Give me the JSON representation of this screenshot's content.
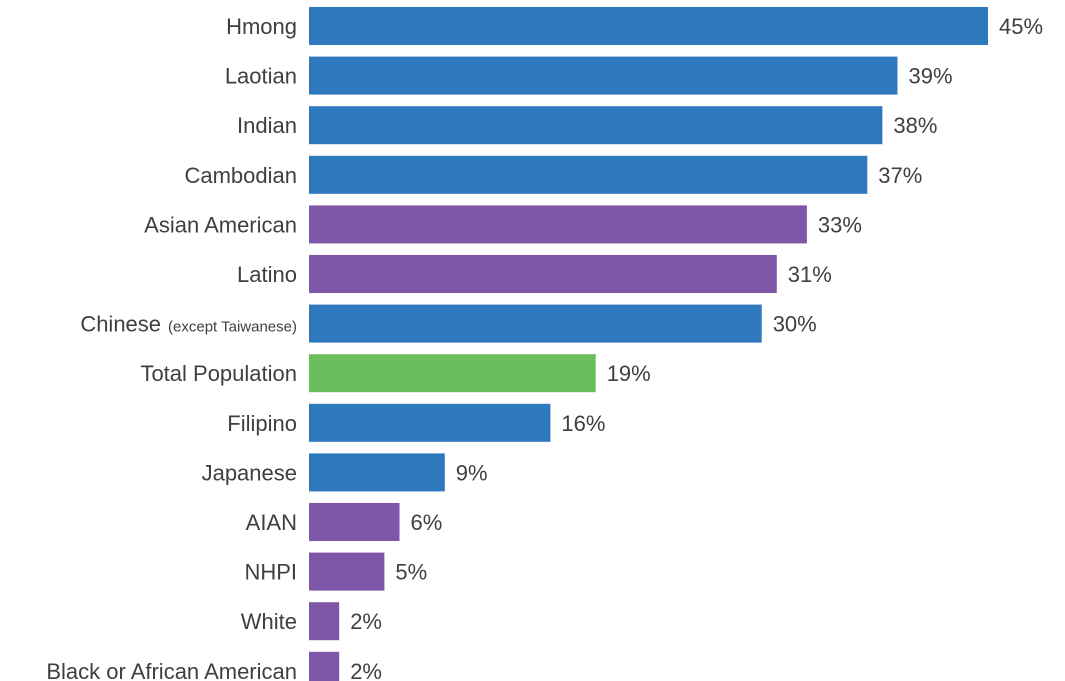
{
  "chart_data": {
    "type": "bar",
    "orientation": "horizontal",
    "title": "",
    "xlabel": "",
    "ylabel": "",
    "xlim": [
      0,
      45
    ],
    "grid": false,
    "legend": "none",
    "value_format": "percent",
    "colors": {
      "asian_subgroup": "#2e78be",
      "comparison_group": "#7f57a8",
      "total": "#6abf5c"
    },
    "categories": [
      {
        "label": "Hmong",
        "note": "",
        "value": 45,
        "value_label": "45%",
        "group": "asian_subgroup"
      },
      {
        "label": "Laotian",
        "note": "",
        "value": 39,
        "value_label": "39%",
        "group": "asian_subgroup"
      },
      {
        "label": "Indian",
        "note": "",
        "value": 38,
        "value_label": "38%",
        "group": "asian_subgroup"
      },
      {
        "label": "Cambodian",
        "note": "",
        "value": 37,
        "value_label": "37%",
        "group": "asian_subgroup"
      },
      {
        "label": "Asian American",
        "note": "",
        "value": 33,
        "value_label": "33%",
        "group": "comparison_group"
      },
      {
        "label": "Latino",
        "note": "",
        "value": 31,
        "value_label": "31%",
        "group": "comparison_group"
      },
      {
        "label": "Chinese",
        "note": "(except Taiwanese)",
        "value": 30,
        "value_label": "30%",
        "group": "asian_subgroup"
      },
      {
        "label": "Total Population",
        "note": "",
        "value": 19,
        "value_label": "19%",
        "group": "total"
      },
      {
        "label": "Filipino",
        "note": "",
        "value": 16,
        "value_label": "16%",
        "group": "asian_subgroup"
      },
      {
        "label": "Japanese",
        "note": "",
        "value": 9,
        "value_label": "9%",
        "group": "asian_subgroup"
      },
      {
        "label": "AIAN",
        "note": "",
        "value": 6,
        "value_label": "6%",
        "group": "comparison_group"
      },
      {
        "label": "NHPI",
        "note": "",
        "value": 5,
        "value_label": "5%",
        "group": "comparison_group"
      },
      {
        "label": "White",
        "note": "",
        "value": 2,
        "value_label": "2%",
        "group": "comparison_group"
      },
      {
        "label": "Black or African American",
        "note": "",
        "value": 2,
        "value_label": "2%",
        "group": "comparison_group"
      }
    ]
  }
}
